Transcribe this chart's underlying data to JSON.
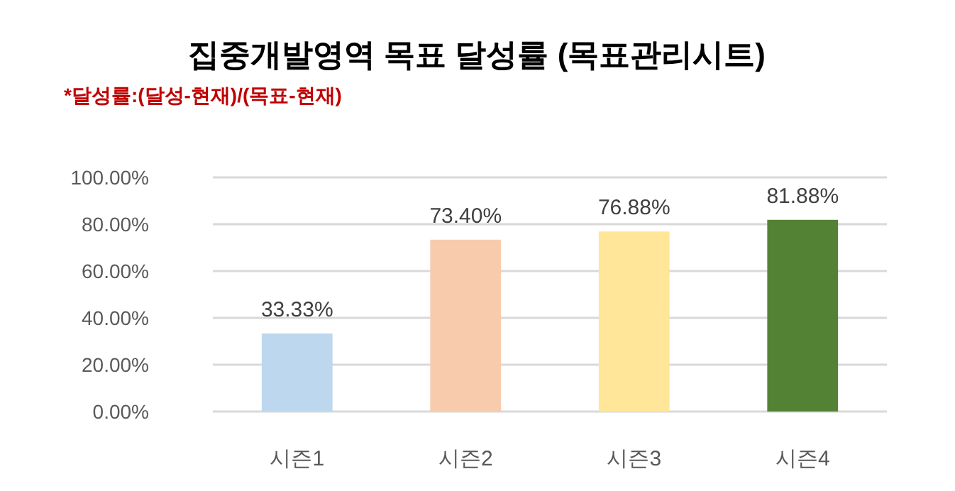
{
  "chart_data": {
    "type": "bar",
    "title": "집중개발영역 목표 달성률 (목표관리시트)",
    "subtitle": "*달성률:(달성-현재)/(목표-현재)",
    "categories": [
      "시즌1",
      "시즌2",
      "시즌3",
      "시즌4"
    ],
    "values": [
      33.33,
      73.4,
      76.88,
      81.88
    ],
    "colors": [
      "#bdd7ee",
      "#f8cbad",
      "#ffe699",
      "#548235"
    ],
    "value_labels": [
      "33.33%",
      "73.40%",
      "76.88%",
      "81.88%"
    ],
    "ylim": [
      0,
      100
    ],
    "yticks": [
      {
        "value": 0,
        "label": "0.00%"
      },
      {
        "value": 20,
        "label": "20.00%"
      },
      {
        "value": 40,
        "label": "40.00%"
      },
      {
        "value": 60,
        "label": "60.00%"
      },
      {
        "value": 80,
        "label": "80.00%"
      },
      {
        "value": 100,
        "label": "100.00%"
      }
    ],
    "grid": "y"
  }
}
